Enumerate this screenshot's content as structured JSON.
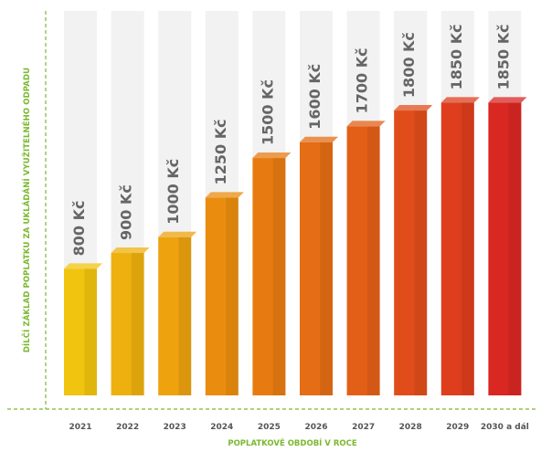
{
  "chart_data": {
    "type": "bar",
    "title": "",
    "xlabel": "POPLATKOVÉ OBDOBÍ V ROCE",
    "ylabel": "DÍLČÍ ZÁKLAD POPLATKU ZA UKLÁDÁNÍ VYUŽITELNÉHO ODPADU",
    "categories": [
      "2021",
      "2022",
      "2023",
      "2024",
      "2025",
      "2026",
      "2027",
      "2028",
      "2029",
      "2030 a dál"
    ],
    "values": [
      800,
      900,
      1000,
      1250,
      1500,
      1600,
      1700,
      1800,
      1850,
      1850
    ],
    "data_labels": [
      "800 Kč",
      "900 Kč",
      "1000 Kč",
      "1250 Kč",
      "1500 Kč",
      "1600 Kč",
      "1700 Kč",
      "1800 Kč",
      "1850 Kč",
      "1850 Kč"
    ],
    "ylim": [
      0,
      2000
    ],
    "grid": false,
    "legend": "none",
    "colors": [
      "#f1c40f",
      "#eeb00f",
      "#eda20e",
      "#ea8d0f",
      "#e77b12",
      "#e56d15",
      "#e35f17",
      "#e04d1a",
      "#de3e1e",
      "#d92722"
    ],
    "axis_color": "#7cb82f"
  }
}
